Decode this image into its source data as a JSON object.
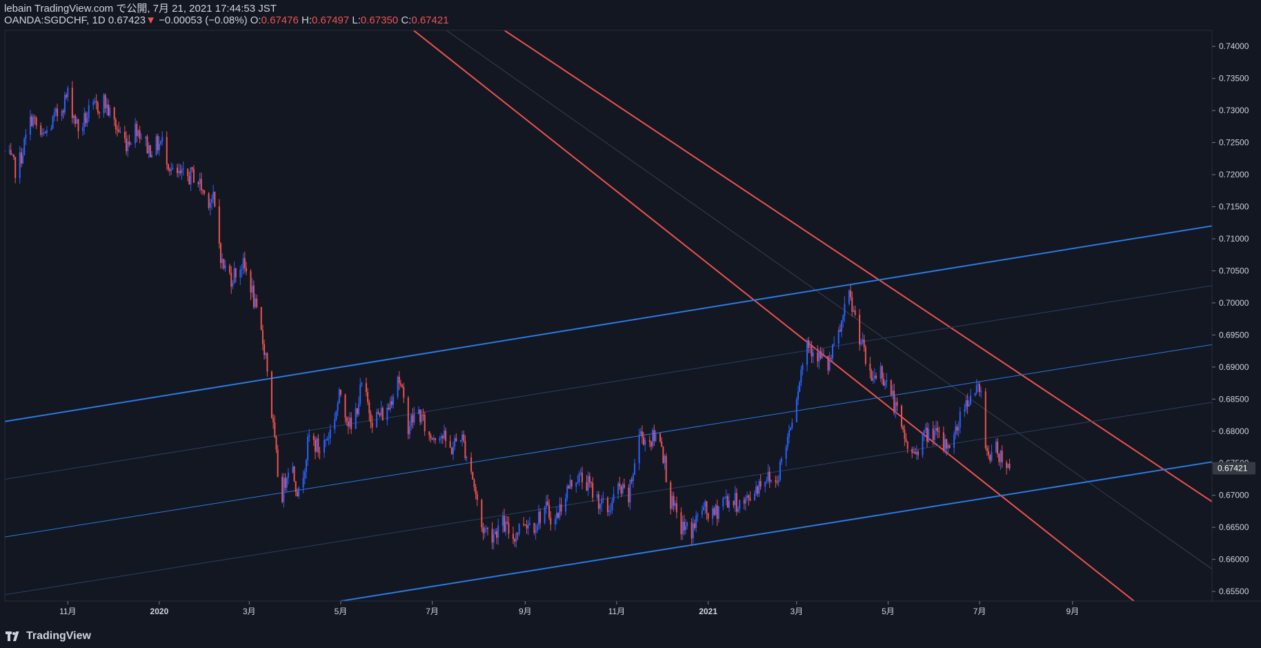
{
  "header": {
    "publish_line": "lebain TradingView.com で公開, 7月 21, 2021 17:44:53 JST",
    "symbol": "OANDA:SGDCHF, 1D",
    "last": "0.67423",
    "change_arrow": "▼",
    "change": "−0.00053 (−0.08%)",
    "o_label": "O:",
    "o_value": "0.67476",
    "h_label": "H:",
    "h_value": "0.67497",
    "l_label": "L:",
    "l_value": "0.67350",
    "c_label": "C:",
    "c_value": "0.67421"
  },
  "brand": {
    "name": "TradingView"
  },
  "colors": {
    "background": "#131722",
    "up": "#2962ff",
    "down": "#ef5350",
    "channel_up": "#2a7be4",
    "channel_down": "#f0524f",
    "text": "#d1d4dc",
    "axis_line": "#2a2e39"
  },
  "chart_data": {
    "type": "candlestick",
    "symbol": "OANDA:SGDCHF",
    "interval": "1D",
    "ylim": [
      0.6535,
      0.7425
    ],
    "y_ticks": [
      "0.74000",
      "0.73500",
      "0.73000",
      "0.72500",
      "0.72000",
      "0.71500",
      "0.71000",
      "0.70500",
      "0.70000",
      "0.69500",
      "0.69000",
      "0.68500",
      "0.68000",
      "0.67500",
      "0.67000",
      "0.66500",
      "0.66000",
      "0.65500"
    ],
    "x_ticks": [
      {
        "label": "11月",
        "date": "2019-11-01"
      },
      {
        "label": "2020",
        "date": "2020-01-01"
      },
      {
        "label": "3月",
        "date": "2020-03-01"
      },
      {
        "label": "5月",
        "date": "2020-05-01"
      },
      {
        "label": "7月",
        "date": "2020-07-01"
      },
      {
        "label": "9月",
        "date": "2020-09-01"
      },
      {
        "label": "11月",
        "date": "2020-11-01"
      },
      {
        "label": "2021",
        "date": "2021-01-01"
      },
      {
        "label": "3月",
        "date": "2021-03-01"
      },
      {
        "label": "5月",
        "date": "2021-05-01"
      },
      {
        "label": "7月",
        "date": "2021-07-01"
      },
      {
        "label": "9月",
        "date": "2021-09-01"
      }
    ],
    "x_range": [
      "2019-09-20",
      "2021-12-03"
    ],
    "last_price_label": "0.67421",
    "last_price": 0.67421,
    "price_path": [
      [
        "2019-09-20",
        0.7235
      ],
      [
        "2019-09-28",
        0.7205
      ],
      [
        "2019-10-08",
        0.729
      ],
      [
        "2019-10-15",
        0.7255
      ],
      [
        "2019-10-24",
        0.729
      ],
      [
        "2019-11-01",
        0.7325
      ],
      [
        "2019-11-08",
        0.727
      ],
      [
        "2019-11-15",
        0.7295
      ],
      [
        "2019-11-25",
        0.7315
      ],
      [
        "2019-12-03",
        0.7275
      ],
      [
        "2019-12-10",
        0.725
      ],
      [
        "2019-12-17",
        0.7275
      ],
      [
        "2019-12-25",
        0.724
      ],
      [
        "2020-01-03",
        0.725
      ],
      [
        "2020-01-10",
        0.72
      ],
      [
        "2020-01-18",
        0.7195
      ],
      [
        "2020-01-25",
        0.72
      ],
      [
        "2020-02-01",
        0.7165
      ],
      [
        "2020-02-06",
        0.716
      ],
      [
        "2020-02-12",
        0.706
      ],
      [
        "2020-02-18",
        0.704
      ],
      [
        "2020-02-25",
        0.706
      ],
      [
        "2020-03-01",
        0.704
      ],
      [
        "2020-03-06",
        0.698
      ],
      [
        "2020-03-12",
        0.692
      ],
      [
        "2020-03-18",
        0.678
      ],
      [
        "2020-03-22",
        0.669
      ],
      [
        "2020-03-28",
        0.676
      ],
      [
        "2020-04-03",
        0.67
      ],
      [
        "2020-04-10",
        0.679
      ],
      [
        "2020-04-17",
        0.677
      ],
      [
        "2020-04-24",
        0.68
      ],
      [
        "2020-05-01",
        0.686
      ],
      [
        "2020-05-08",
        0.68
      ],
      [
        "2020-05-15",
        0.687
      ],
      [
        "2020-05-22",
        0.682
      ],
      [
        "2020-06-01",
        0.683
      ],
      [
        "2020-06-08",
        0.689
      ],
      [
        "2020-06-15",
        0.681
      ],
      [
        "2020-06-22",
        0.683
      ],
      [
        "2020-06-29",
        0.679
      ],
      [
        "2020-07-06",
        0.68
      ],
      [
        "2020-07-13",
        0.677
      ],
      [
        "2020-07-20",
        0.6795
      ],
      [
        "2020-07-27",
        0.674
      ],
      [
        "2020-08-03",
        0.665
      ],
      [
        "2020-08-10",
        0.664
      ],
      [
        "2020-08-17",
        0.6655
      ],
      [
        "2020-08-24",
        0.6635
      ],
      [
        "2020-08-31",
        0.666
      ],
      [
        "2020-09-07",
        0.6655
      ],
      [
        "2020-09-14",
        0.668
      ],
      [
        "2020-09-21",
        0.666
      ],
      [
        "2020-09-28",
        0.6705
      ],
      [
        "2020-10-05",
        0.673
      ],
      [
        "2020-10-12",
        0.672
      ],
      [
        "2020-10-19",
        0.6695
      ],
      [
        "2020-10-26",
        0.6675
      ],
      [
        "2020-11-02",
        0.671
      ],
      [
        "2020-11-09",
        0.6695
      ],
      [
        "2020-11-16",
        0.6795
      ],
      [
        "2020-11-23",
        0.6785
      ],
      [
        "2020-11-30",
        0.6795
      ],
      [
        "2020-12-07",
        0.669
      ],
      [
        "2020-12-14",
        0.665
      ],
      [
        "2020-12-21",
        0.6645
      ],
      [
        "2020-12-28",
        0.668
      ],
      [
        "2021-01-04",
        0.6665
      ],
      [
        "2021-01-11",
        0.6695
      ],
      [
        "2021-01-18",
        0.669
      ],
      [
        "2021-01-25",
        0.6685
      ],
      [
        "2021-02-01",
        0.671
      ],
      [
        "2021-02-08",
        0.673
      ],
      [
        "2021-02-15",
        0.672
      ],
      [
        "2021-02-22",
        0.678
      ],
      [
        "2021-03-01",
        0.686
      ],
      [
        "2021-03-08",
        0.694
      ],
      [
        "2021-03-15",
        0.692
      ],
      [
        "2021-03-22",
        0.69
      ],
      [
        "2021-03-29",
        0.695
      ],
      [
        "2021-04-05",
        0.701
      ],
      [
        "2021-04-12",
        0.695
      ],
      [
        "2021-04-19",
        0.688
      ],
      [
        "2021-04-26",
        0.6895
      ],
      [
        "2021-05-03",
        0.686
      ],
      [
        "2021-05-10",
        0.68
      ],
      [
        "2021-05-17",
        0.676
      ],
      [
        "2021-05-24",
        0.679
      ],
      [
        "2021-05-31",
        0.68
      ],
      [
        "2021-06-07",
        0.6775
      ],
      [
        "2021-06-14",
        0.679
      ],
      [
        "2021-06-21",
        0.6845
      ],
      [
        "2021-06-28",
        0.6865
      ],
      [
        "2021-07-02",
        0.6855
      ],
      [
        "2021-07-06",
        0.6765
      ],
      [
        "2021-07-13",
        0.677
      ],
      [
        "2021-07-21",
        0.6742
      ]
    ],
    "lines": [
      {
        "name": "",
        "role": "descending-channel-upper",
        "color": "#f0524f",
        "start": [
          "2020-07-01",
          0.75
        ],
        "end": [
          "2021-12-03",
          0.669
        ]
      },
      {
        "name": "",
        "role": "descending-channel-lower",
        "color": "#f0524f",
        "start": [
          "2019-09-20",
          0.793
        ],
        "end": [
          "2021-10-12",
          0.6535
        ]
      },
      {
        "name": "",
        "role": "descending-channel-mid",
        "color": "#3a3f52",
        "start": [
          "2020-01-01",
          0.774
        ],
        "end": [
          "2021-12-03",
          0.6585
        ]
      },
      {
        "name": "",
        "role": "ascending-channel-top",
        "color": "#2a7be4",
        "start": [
          "2019-09-20",
          0.6815
        ],
        "end": [
          "2021-12-03",
          0.712
        ]
      },
      {
        "name": "",
        "role": "ascending-channel-middle",
        "color": "#2a7be4",
        "start": [
          "2019-09-20",
          0.6635
        ],
        "end": [
          "2021-12-03",
          0.6935
        ]
      },
      {
        "name": "",
        "role": "ascending-channel-bottom",
        "color": "#2a7be4",
        "start": [
          "2020-05-01",
          0.6535
        ],
        "end": [
          "2021-12-03",
          0.6752
        ]
      },
      {
        "name": "",
        "role": "ascending-channel-faint-1",
        "color": "#2b3f66",
        "start": [
          "2019-09-20",
          0.6725
        ],
        "end": [
          "2021-12-03",
          0.7027
        ]
      },
      {
        "name": "",
        "role": "ascending-channel-faint-2",
        "color": "#2b3f66",
        "start": [
          "2019-09-20",
          0.6545
        ],
        "end": [
          "2021-12-03",
          0.6845
        ]
      }
    ]
  }
}
